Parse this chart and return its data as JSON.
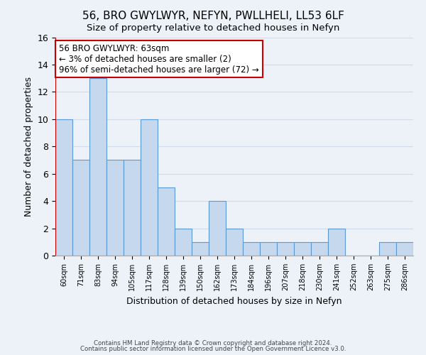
{
  "title": "56, BRO GWYLWYR, NEFYN, PWLLHELI, LL53 6LF",
  "subtitle": "Size of property relative to detached houses in Nefyn",
  "xlabel": "Distribution of detached houses by size in Nefyn",
  "ylabel": "Number of detached properties",
  "bin_labels": [
    "60sqm",
    "71sqm",
    "83sqm",
    "94sqm",
    "105sqm",
    "117sqm",
    "128sqm",
    "139sqm",
    "150sqm",
    "162sqm",
    "173sqm",
    "184sqm",
    "196sqm",
    "207sqm",
    "218sqm",
    "230sqm",
    "241sqm",
    "252sqm",
    "263sqm",
    "275sqm",
    "286sqm"
  ],
  "bar_values": [
    10,
    7,
    13,
    7,
    7,
    10,
    5,
    2,
    1,
    4,
    2,
    1,
    1,
    1,
    1,
    1,
    2,
    0,
    0,
    1,
    1
  ],
  "bar_color": "#c5d8ed",
  "bar_edge_color": "#5b9bd5",
  "annotation_line1": "56 BRO GWYLWYR: 63sqm",
  "annotation_line2": "← 3% of detached houses are smaller (2)",
  "annotation_line3": "96% of semi-detached houses are larger (72) →",
  "annotation_box_color": "#ffffff",
  "annotation_box_edge_color": "#cc0000",
  "red_line_color": "#cc0000",
  "ylim": [
    0,
    16
  ],
  "yticks": [
    0,
    2,
    4,
    6,
    8,
    10,
    12,
    14,
    16
  ],
  "grid_color": "#d0dcea",
  "bg_color": "#edf2f9",
  "footer_line1": "Contains HM Land Registry data © Crown copyright and database right 2024.",
  "footer_line2": "Contains public sector information licensed under the Open Government Licence v3.0.",
  "title_fontsize": 11,
  "subtitle_fontsize": 9.5,
  "annotation_fontsize": 8.5,
  "footer_fontsize": 6.2
}
